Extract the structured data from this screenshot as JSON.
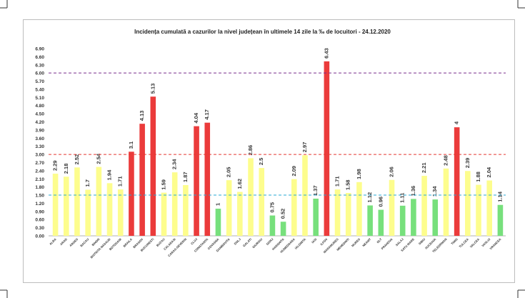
{
  "chart_data": {
    "type": "bar",
    "title": "Incidența cumulată a cazurilor la nivel județean în ultimele 14 zile la ‰ de locuitori - 24.12.2020",
    "xlabel": "",
    "ylabel": "",
    "ylim": [
      0,
      6.9
    ],
    "yticks": [
      "0.00",
      "0.30",
      "0.60",
      "0.90",
      "1.20",
      "1.50",
      "1.80",
      "2.10",
      "2.40",
      "2.70",
      "3.00",
      "3.30",
      "3.60",
      "3.90",
      "4.20",
      "4.50",
      "4.80",
      "5.10",
      "5.40",
      "5.70",
      "6.00",
      "6.30",
      "6.60",
      "6.90"
    ],
    "grid": false,
    "categories": [
      "ALBA",
      "ARAD",
      "ARGES",
      "BACAU",
      "BIHOR",
      "BISTRITA NASAUD",
      "BOTOSANI",
      "BRAILA",
      "BRASOV",
      "BUCURESTI",
      "BUZAU",
      "CALARASI",
      "CARAS-SEVERIN",
      "CLUJ",
      "CONSTANTA",
      "COVASNA",
      "DAMBOVITA",
      "DOLJ",
      "GALATI",
      "GIURGIU",
      "GORJ",
      "HARGHITA",
      "HUNEDOARA",
      "IALOMITA",
      "IASI",
      "ILFOV",
      "MARAMURES",
      "MEHEDINTI",
      "MURES",
      "NEAMT",
      "OLT",
      "PRAHOVA",
      "SALAJ",
      "SATU MARE",
      "SIBIU",
      "SUCEAVA",
      "TELEORMAN",
      "TIMIS",
      "TULCEA",
      "VALCEA",
      "VASLUI",
      "VRANCEA"
    ],
    "values": [
      2.29,
      2.18,
      2.52,
      1.7,
      2.54,
      1.94,
      1.71,
      3.1,
      4.13,
      5.13,
      1.59,
      2.34,
      1.87,
      4.04,
      4.17,
      1,
      2.05,
      1.62,
      2.86,
      2.5,
      0.75,
      0.52,
      2.09,
      2.97,
      1.37,
      6.43,
      1.71,
      1.58,
      1.98,
      1.12,
      0.96,
      2.06,
      1.11,
      1.36,
      2.21,
      1.34,
      2.48,
      4,
      2.39,
      1.88,
      2.04,
      1.14
    ],
    "value_labels": [
      "2.29",
      "2.18",
      "2.52",
      "1.7",
      "2.54",
      "1.94",
      "1.71",
      "3.1",
      "4.13",
      "5.13",
      "1.59",
      "2.34",
      "1.87",
      "4.04",
      "4.17",
      "1",
      "2.05",
      "1.62",
      "2.86",
      "2.5",
      "0.75",
      "0.52",
      "2.09",
      "2.97",
      "1.37",
      "6.43",
      "1.71",
      "1.58",
      "1.98",
      "1.12",
      "0.96",
      "2.06",
      "1.11",
      "1.36",
      "2.21",
      "1.34",
      "2.48",
      "4",
      "2.39",
      "1.88",
      "2.04",
      "1.14"
    ],
    "thresholds": [
      {
        "value": 1.5,
        "color": "#29a8d4",
        "style": "dashed"
      },
      {
        "value": 3.0,
        "color": "#e53935",
        "style": "dashed"
      },
      {
        "value": 6.0,
        "color": "#7b2d8e",
        "style": "dashed"
      }
    ],
    "colors": {
      "green": "#77e07c",
      "yellow": "#fdfd8d",
      "red": "#eb3b3b",
      "label": "#333333",
      "axis": "#999999"
    },
    "color_rule": {
      "green_below": 1.5,
      "red_above": 3.0
    }
  }
}
